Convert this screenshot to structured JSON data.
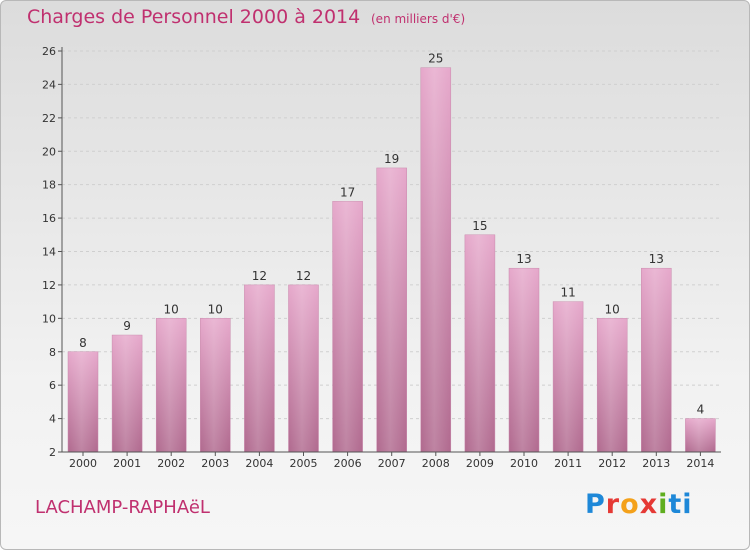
{
  "header": {
    "title": "Charges de Personnel 2000 à 2014",
    "subtitle": "(en milliers d'€)"
  },
  "footer": {
    "commune": "LACHAMP-RAPHAëL",
    "brand": "Proxiti",
    "brand_colors": [
      "#1e88d8",
      "#e53935",
      "#f4a11a",
      "#e53935",
      "#5fae1f",
      "#1e88d8",
      "#1e88d8"
    ]
  },
  "colors": {
    "bar_top": "#e6a8cb",
    "bar_bottom": "#b0698e",
    "axis": "#555555",
    "grid": "#cfcfcf"
  },
  "chart_data": {
    "type": "bar",
    "title": "Charges de Personnel 2000 à 2014",
    "subtitle": "(en milliers d'€)",
    "xlabel": "",
    "ylabel": "",
    "categories": [
      "2000",
      "2001",
      "2002",
      "2003",
      "2004",
      "2005",
      "2006",
      "2007",
      "2008",
      "2009",
      "2010",
      "2011",
      "2012",
      "2013",
      "2014"
    ],
    "values": [
      8,
      9,
      10,
      10,
      12,
      12,
      17,
      19,
      25,
      15,
      13,
      11,
      10,
      13,
      4
    ],
    "data_labels": [
      "8",
      "9",
      "10",
      "10",
      "12",
      "12",
      "17",
      "19",
      "25",
      "15",
      "13",
      "11",
      "10",
      "13",
      "4"
    ],
    "ylim": [
      2,
      26
    ],
    "yticks": [
      2,
      4,
      6,
      8,
      10,
      12,
      14,
      16,
      18,
      20,
      22,
      24,
      26
    ],
    "ytick_labels": [
      "2",
      "4",
      "6",
      "8",
      "10",
      "12",
      "14",
      "16",
      "18",
      "20",
      "22",
      "24",
      "26"
    ],
    "grid": true,
    "legend": "none"
  }
}
